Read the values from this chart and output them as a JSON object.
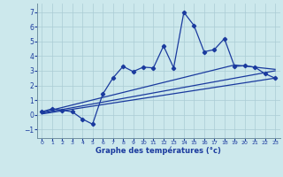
{
  "xlabel": "Graphe des températures (°c)",
  "bg_color": "#cce8ec",
  "line_color": "#1a3a9e",
  "grid_color": "#aaccd4",
  "x_ticks": [
    0,
    1,
    2,
    3,
    4,
    5,
    6,
    7,
    8,
    9,
    10,
    11,
    12,
    13,
    14,
    15,
    16,
    17,
    18,
    19,
    20,
    21,
    22,
    23
  ],
  "y_ticks": [
    -1,
    0,
    1,
    2,
    3,
    4,
    5,
    6,
    7
  ],
  "ylim": [
    -1.6,
    7.6
  ],
  "xlim": [
    -0.5,
    23.5
  ],
  "scatter_x": [
    0,
    1,
    2,
    3,
    4,
    5,
    6,
    7,
    8,
    9,
    10,
    11,
    12,
    13,
    14,
    15,
    16,
    17,
    18,
    19,
    20,
    21,
    22,
    23
  ],
  "scatter_y": [
    0.2,
    0.4,
    0.3,
    0.2,
    -0.3,
    -0.65,
    1.4,
    2.5,
    3.3,
    2.95,
    3.25,
    3.2,
    4.7,
    3.2,
    7.0,
    6.1,
    4.3,
    4.45,
    5.2,
    3.3,
    3.35,
    3.25,
    2.8,
    2.5
  ],
  "trend1_x": [
    0,
    23
  ],
  "trend1_y": [
    0.05,
    2.5
  ],
  "trend2_x": [
    0,
    23
  ],
  "trend2_y": [
    0.1,
    3.0
  ],
  "trend3_x": [
    0,
    19,
    23
  ],
  "trend3_y": [
    0.15,
    3.4,
    3.1
  ]
}
